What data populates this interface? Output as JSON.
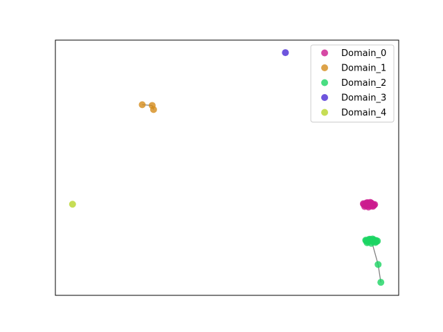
{
  "chart_data": {
    "type": "scatter",
    "title": "",
    "xlabel": "",
    "ylabel": "",
    "xlim": [
      0,
      100
    ],
    "ylim": [
      0,
      100
    ],
    "grid": false,
    "axis_ticks": false,
    "legend_position": "top-right",
    "series": [
      {
        "name": "Domain_0",
        "color": "#cc1b8f",
        "points": [
          [
            89.8,
            35.7
          ],
          [
            90.4,
            35.2
          ],
          [
            91.0,
            35.9
          ],
          [
            91.6,
            35.4
          ],
          [
            92.2,
            35.8
          ],
          [
            92.8,
            35.3
          ],
          [
            90.1,
            34.8
          ],
          [
            90.9,
            36.3
          ],
          [
            91.7,
            36.4
          ],
          [
            92.5,
            34.9
          ],
          [
            89.7,
            35.9
          ],
          [
            93.0,
            35.6
          ],
          [
            91.2,
            34.6
          ],
          [
            90.6,
            36.2
          ],
          [
            92.0,
            36.2
          ],
          [
            91.4,
            35.6
          ],
          [
            90.2,
            35.5
          ],
          [
            92.6,
            35.6
          ],
          [
            91.0,
            35.1
          ],
          [
            91.9,
            35.0
          ]
        ]
      },
      {
        "name": "Domain_1",
        "color": "#d48c1b",
        "points": [
          [
            25.3,
            74.7
          ],
          [
            28.2,
            74.4
          ],
          [
            28.6,
            72.8
          ]
        ],
        "edges": [
          [
            0,
            1
          ],
          [
            1,
            2
          ]
        ]
      },
      {
        "name": "Domain_2",
        "color": "#1bd463",
        "points": [
          [
            90.5,
            21.4
          ],
          [
            91.1,
            21.0
          ],
          [
            91.7,
            21.6
          ],
          [
            92.3,
            21.1
          ],
          [
            92.9,
            21.5
          ],
          [
            93.5,
            21.0
          ],
          [
            90.8,
            20.6
          ],
          [
            91.6,
            22.0
          ],
          [
            92.4,
            22.1
          ],
          [
            93.2,
            20.7
          ],
          [
            90.4,
            21.6
          ],
          [
            93.8,
            21.3
          ],
          [
            92.0,
            20.4
          ],
          [
            91.3,
            21.9
          ],
          [
            92.7,
            21.8
          ],
          [
            92.1,
            21.3
          ],
          [
            90.9,
            21.3
          ],
          [
            93.4,
            21.5
          ],
          [
            94.0,
            12.1
          ],
          [
            94.8,
            5.1
          ]
        ],
        "edges": [
          [
            15,
            18
          ],
          [
            18,
            19
          ]
        ]
      },
      {
        "name": "Domain_3",
        "color": "#4a2bd4",
        "points": [
          [
            67.0,
            95.1
          ]
        ]
      },
      {
        "name": "Domain_4",
        "color": "#b8d42b",
        "points": [
          [
            5.0,
            35.7
          ]
        ]
      }
    ]
  }
}
